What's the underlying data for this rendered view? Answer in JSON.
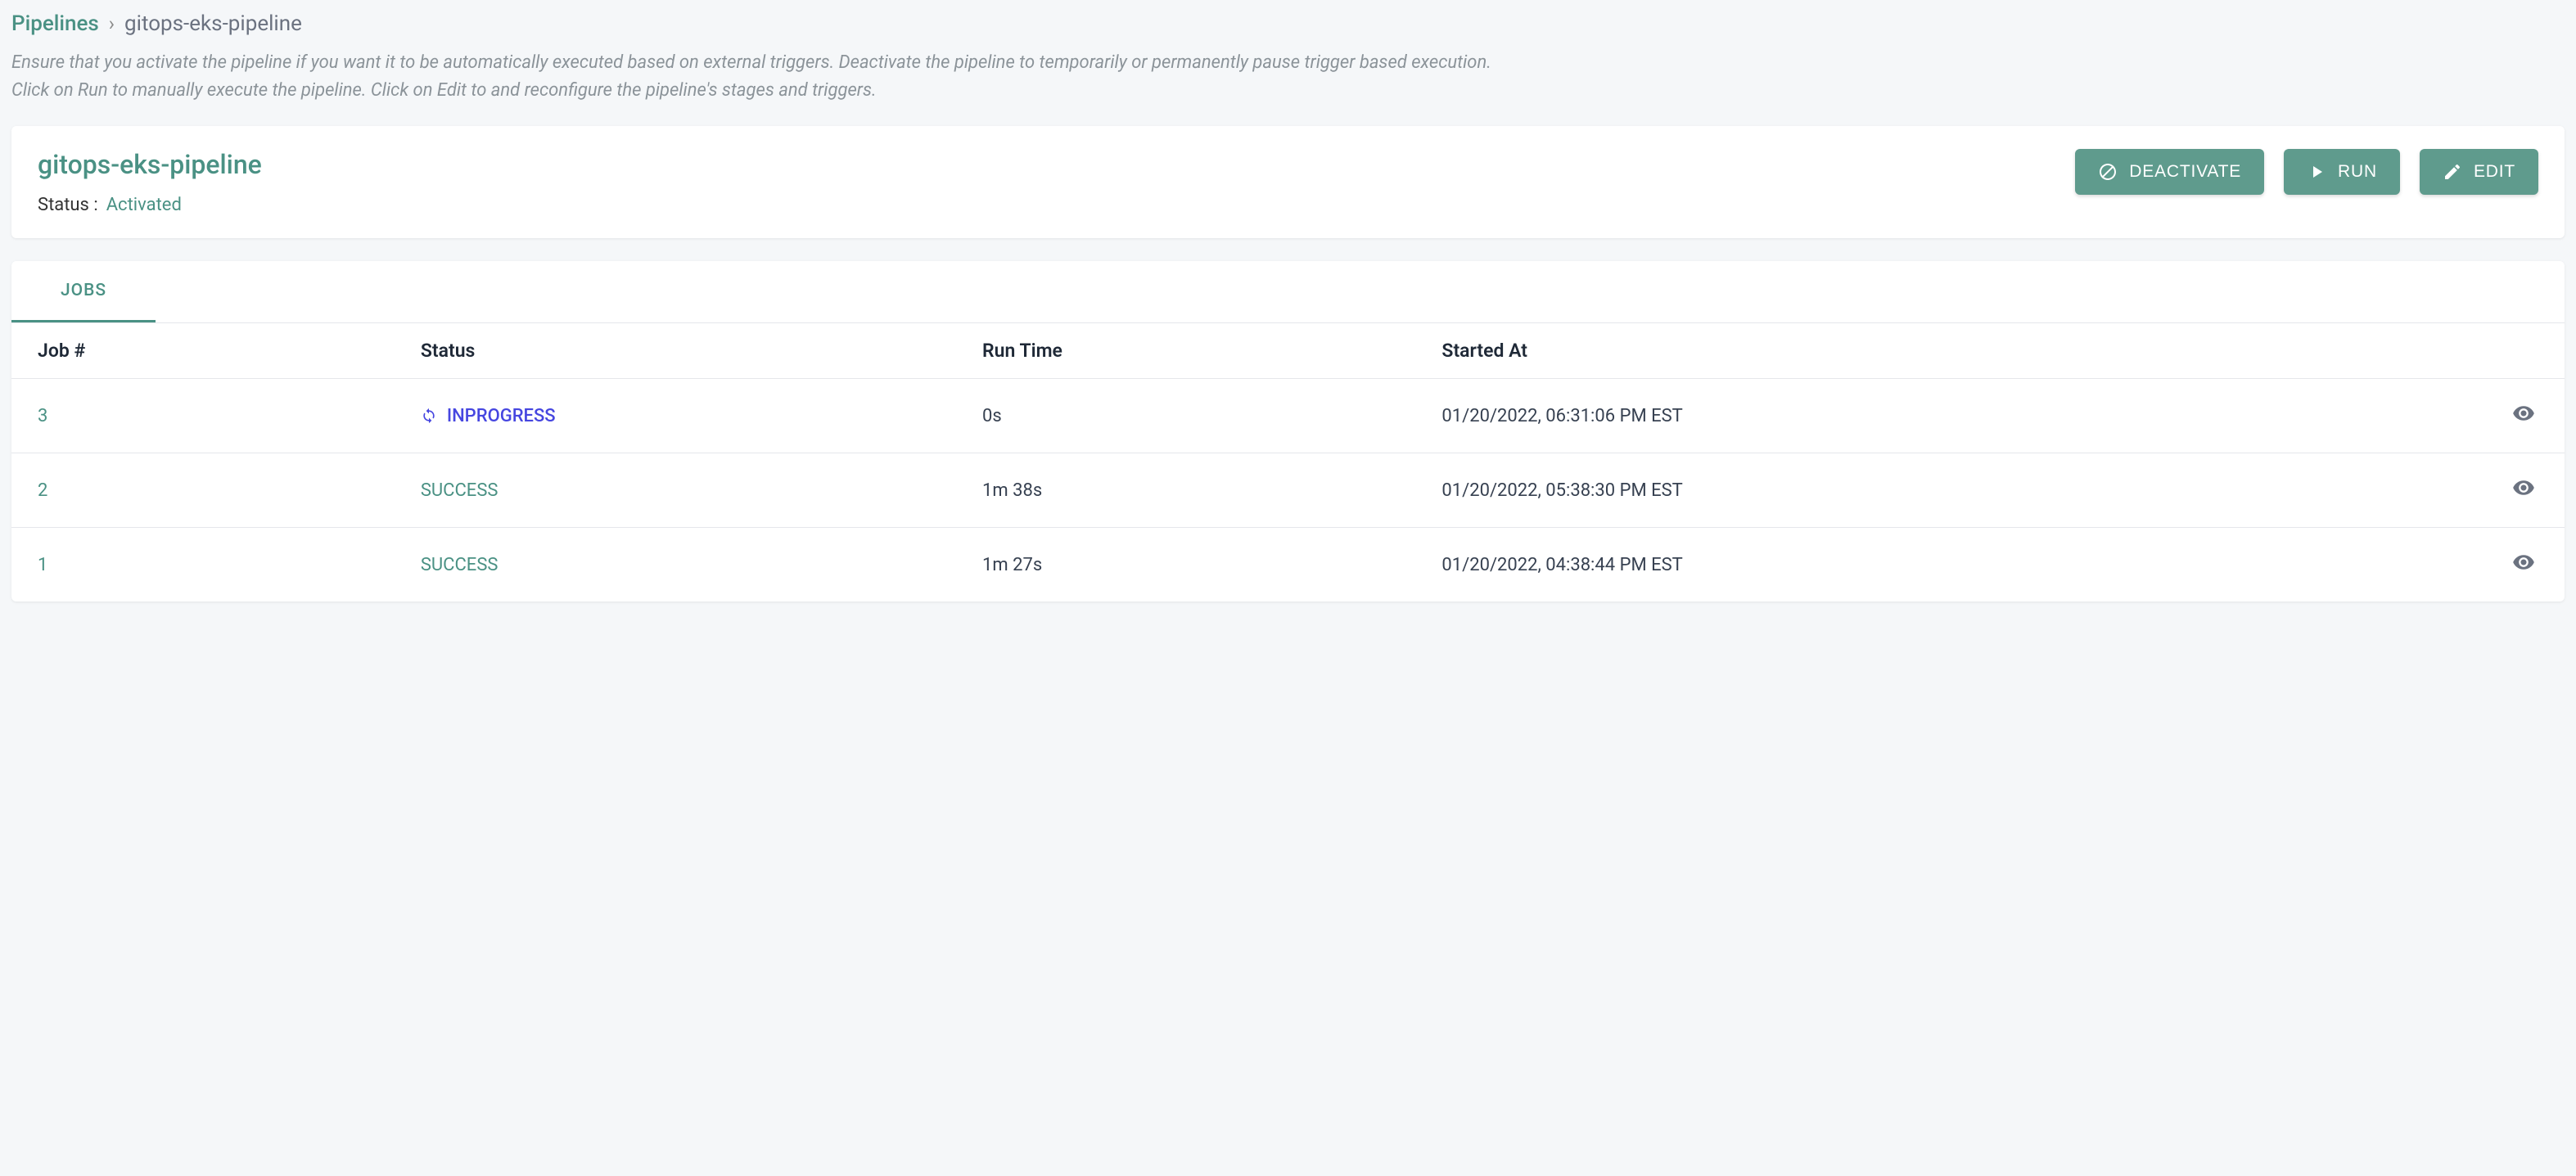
{
  "breadcrumb": {
    "root": "Pipelines",
    "separator": "›",
    "current": "gitops-eks-pipeline"
  },
  "description": {
    "line1": "Ensure that you activate the pipeline if you want it to be automatically executed based on external triggers. Deactivate the pipeline to temporarily or permanently pause trigger based execution.",
    "line2": "Click on Run to manually execute the pipeline. Click on Edit to and reconfigure the pipeline's stages and triggers."
  },
  "header": {
    "title": "gitops-eks-pipeline",
    "status_label": "Status :",
    "status_value": "Activated",
    "buttons": {
      "deactivate": "DEACTIVATE",
      "run": "RUN",
      "edit": "EDIT"
    }
  },
  "tabs": {
    "jobs": "JOBS"
  },
  "table": {
    "headers": {
      "job": "Job #",
      "status": "Status",
      "runtime": "Run Time",
      "started": "Started At"
    },
    "rows": [
      {
        "job": "3",
        "status": "INPROGRESS",
        "status_type": "inprogress",
        "runtime": "0s",
        "started": "01/20/2022, 06:31:06 PM EST"
      },
      {
        "job": "2",
        "status": "SUCCESS",
        "status_type": "success",
        "runtime": "1m 38s",
        "started": "01/20/2022, 05:38:30 PM EST"
      },
      {
        "job": "1",
        "status": "SUCCESS",
        "status_type": "success",
        "runtime": "1m 27s",
        "started": "01/20/2022, 04:38:44 PM EST"
      }
    ]
  },
  "colors": {
    "primary": "#4a9184",
    "button_bg": "#5f9b8d",
    "inprogress": "#4646e0",
    "text_muted": "#8b9399",
    "background": "#f5f7f9"
  }
}
